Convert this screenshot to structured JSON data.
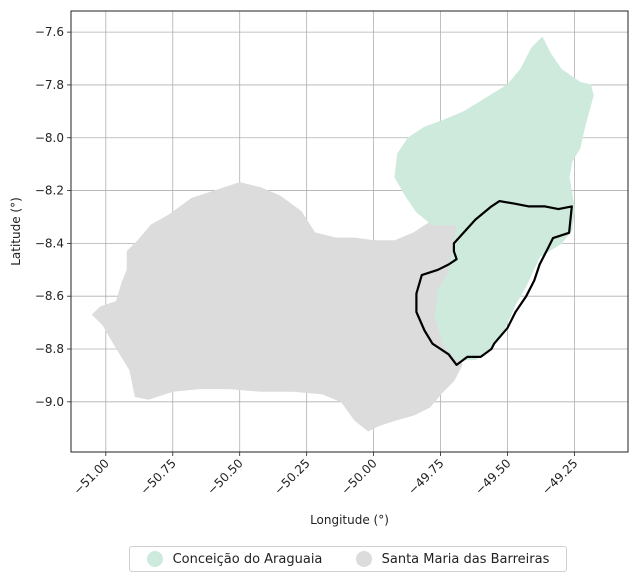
{
  "chart_data": {
    "type": "map",
    "xlabel": "Longitude (°)",
    "ylabel": "Latitude (°)",
    "xlim": [
      -51.13,
      -49.05
    ],
    "ylim": [
      -9.19,
      -7.52
    ],
    "x_ticks": [
      -51.0,
      -50.75,
      -50.5,
      -50.25,
      -50.0,
      -49.75,
      -49.5,
      -49.25
    ],
    "x_tick_labels": [
      "−51.00",
      "−50.75",
      "−50.50",
      "−50.25",
      "−50.00",
      "−49.75",
      "−49.50",
      "−49.25"
    ],
    "y_ticks": [
      -7.6,
      -7.8,
      -8.0,
      -8.2,
      -8.4,
      -8.6,
      -8.8,
      -9.0
    ],
    "y_tick_labels": [
      "−7.6",
      "−7.8",
      "−8.0",
      "−8.2",
      "−8.4",
      "−8.6",
      "−8.8",
      "−9.0"
    ],
    "grid": true,
    "legend_position": "bottom-center",
    "regions": [
      {
        "name": "Conceição do Araguaia",
        "color": "#cdeadc",
        "coords": [
          [
            -49.41,
            -7.66
          ],
          [
            -49.37,
            -7.62
          ],
          [
            -49.34,
            -7.68
          ],
          [
            -49.3,
            -7.74
          ],
          [
            -49.23,
            -7.79
          ],
          [
            -49.19,
            -7.8
          ],
          [
            -49.18,
            -7.84
          ],
          [
            -49.21,
            -7.95
          ],
          [
            -49.23,
            -8.04
          ],
          [
            -49.26,
            -8.09
          ],
          [
            -49.27,
            -8.15
          ],
          [
            -49.25,
            -8.27
          ],
          [
            -49.26,
            -8.35
          ],
          [
            -49.3,
            -8.4
          ],
          [
            -49.38,
            -8.45
          ],
          [
            -49.43,
            -8.56
          ],
          [
            -49.47,
            -8.63
          ],
          [
            -49.51,
            -8.72
          ],
          [
            -49.56,
            -8.8
          ],
          [
            -49.62,
            -8.84
          ],
          [
            -49.69,
            -8.84
          ],
          [
            -49.74,
            -8.78
          ],
          [
            -49.77,
            -8.68
          ],
          [
            -49.76,
            -8.58
          ],
          [
            -49.72,
            -8.51
          ],
          [
            -49.7,
            -8.4
          ],
          [
            -49.69,
            -8.33
          ],
          [
            -49.78,
            -8.33
          ],
          [
            -49.84,
            -8.28
          ],
          [
            -49.88,
            -8.22
          ],
          [
            -49.92,
            -8.15
          ],
          [
            -49.91,
            -8.06
          ],
          [
            -49.87,
            -8.0
          ],
          [
            -49.81,
            -7.96
          ],
          [
            -49.73,
            -7.93
          ],
          [
            -49.66,
            -7.9
          ],
          [
            -49.58,
            -7.85
          ],
          [
            -49.5,
            -7.8
          ],
          [
            -49.45,
            -7.74
          ]
        ]
      },
      {
        "name": "Santa Maria das Barreiras",
        "color": "#dcdcdc",
        "coords": [
          [
            -51.05,
            -8.67
          ],
          [
            -51.02,
            -8.64
          ],
          [
            -50.96,
            -8.62
          ],
          [
            -50.94,
            -8.55
          ],
          [
            -50.92,
            -8.5
          ],
          [
            -50.92,
            -8.43
          ],
          [
            -50.88,
            -8.39
          ],
          [
            -50.83,
            -8.33
          ],
          [
            -50.76,
            -8.29
          ],
          [
            -50.68,
            -8.23
          ],
          [
            -50.59,
            -8.2
          ],
          [
            -50.5,
            -8.17
          ],
          [
            -50.42,
            -8.19
          ],
          [
            -50.35,
            -8.22
          ],
          [
            -50.27,
            -8.28
          ],
          [
            -50.22,
            -8.36
          ],
          [
            -50.14,
            -8.38
          ],
          [
            -50.07,
            -8.38
          ],
          [
            -50.0,
            -8.39
          ],
          [
            -49.92,
            -8.39
          ],
          [
            -49.85,
            -8.36
          ],
          [
            -49.79,
            -8.32
          ],
          [
            -49.7,
            -8.3
          ],
          [
            -49.68,
            -8.32
          ],
          [
            -49.69,
            -8.41
          ],
          [
            -49.71,
            -8.5
          ],
          [
            -49.74,
            -8.56
          ],
          [
            -49.76,
            -8.62
          ],
          [
            -49.73,
            -8.7
          ],
          [
            -49.71,
            -8.79
          ],
          [
            -49.67,
            -8.86
          ],
          [
            -49.7,
            -8.92
          ],
          [
            -49.74,
            -8.96
          ],
          [
            -49.79,
            -9.02
          ],
          [
            -49.85,
            -9.05
          ],
          [
            -49.92,
            -9.07
          ],
          [
            -49.98,
            -9.09
          ],
          [
            -50.02,
            -9.11
          ],
          [
            -50.07,
            -9.07
          ],
          [
            -50.12,
            -9.0
          ],
          [
            -50.19,
            -8.97
          ],
          [
            -50.3,
            -8.96
          ],
          [
            -50.42,
            -8.96
          ],
          [
            -50.54,
            -8.95
          ],
          [
            -50.65,
            -8.95
          ],
          [
            -50.75,
            -8.96
          ],
          [
            -50.84,
            -8.99
          ],
          [
            -50.89,
            -8.98
          ],
          [
            -50.91,
            -8.88
          ],
          [
            -50.97,
            -8.78
          ],
          [
            -51.01,
            -8.71
          ]
        ]
      }
    ],
    "boundary": {
      "color": "#000000",
      "coords": [
        [
          -49.7,
          -8.4
        ],
        [
          -49.62,
          -8.31
        ],
        [
          -49.56,
          -8.26
        ],
        [
          -49.53,
          -8.24
        ],
        [
          -49.47,
          -8.25
        ],
        [
          -49.42,
          -8.26
        ],
        [
          -49.36,
          -8.26
        ],
        [
          -49.31,
          -8.27
        ],
        [
          -49.26,
          -8.26
        ],
        [
          -49.27,
          -8.36
        ],
        [
          -49.33,
          -8.38
        ],
        [
          -49.35,
          -8.42
        ],
        [
          -49.38,
          -8.48
        ],
        [
          -49.4,
          -8.54
        ],
        [
          -49.43,
          -8.6
        ],
        [
          -49.47,
          -8.66
        ],
        [
          -49.5,
          -8.72
        ],
        [
          -49.55,
          -8.78
        ],
        [
          -49.56,
          -8.8
        ],
        [
          -49.6,
          -8.83
        ],
        [
          -49.65,
          -8.83
        ],
        [
          -49.69,
          -8.86
        ],
        [
          -49.72,
          -8.82
        ],
        [
          -49.78,
          -8.78
        ],
        [
          -49.81,
          -8.73
        ],
        [
          -49.84,
          -8.66
        ],
        [
          -49.84,
          -8.59
        ],
        [
          -49.82,
          -8.52
        ],
        [
          -49.76,
          -8.5
        ],
        [
          -49.72,
          -8.48
        ],
        [
          -49.69,
          -8.46
        ],
        [
          -49.7,
          -8.43
        ]
      ]
    }
  }
}
